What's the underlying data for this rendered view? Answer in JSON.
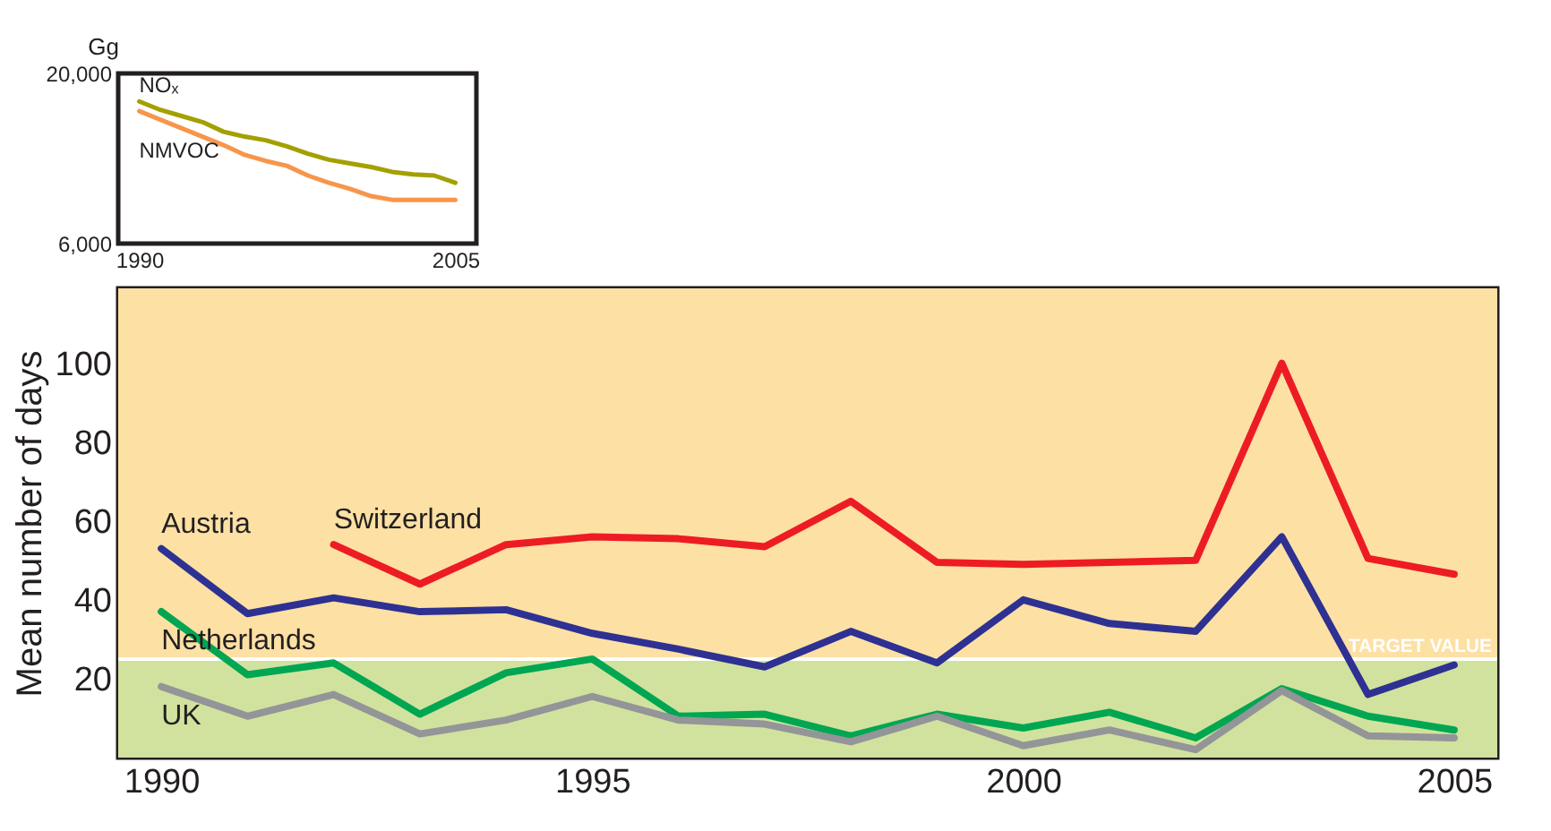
{
  "chart_data": [
    {
      "type": "line",
      "ylabel": "Gg",
      "x": [
        1990,
        1991,
        1992,
        1993,
        1994,
        1995,
        1996,
        1997,
        1998,
        1999,
        2000,
        2001,
        2002,
        2003,
        2004,
        2005
      ],
      "xlim": [
        1989,
        2006
      ],
      "xticks": [
        1990,
        2005
      ],
      "ylim": [
        6000,
        20000
      ],
      "yticks": [
        {
          "value": 6000,
          "label": "6,000"
        },
        {
          "value": 20000,
          "label": "20,000"
        }
      ],
      "grid": false,
      "legend": false,
      "series": [
        {
          "name": "NOₓ",
          "color": "#a3a000",
          "values": [
            17700,
            17000,
            16500,
            16000,
            15200,
            14800,
            14500,
            14000,
            13400,
            12900,
            12600,
            12300,
            11900,
            11700,
            11600,
            11000
          ]
        },
        {
          "name": "NMVOC",
          "color": "#f7964a",
          "values": [
            16900,
            16200,
            15500,
            14800,
            14100,
            13300,
            12800,
            12400,
            11600,
            11000,
            10500,
            9900,
            9600,
            9600,
            9600,
            9600
          ]
        }
      ]
    },
    {
      "type": "line",
      "ylabel": "Mean number of days",
      "x": [
        1990,
        1991,
        1992,
        1993,
        1994,
        1995,
        1996,
        1997,
        1998,
        1999,
        2000,
        2001,
        2002,
        2003,
        2004,
        2005
      ],
      "xlim": [
        1989.5,
        2005.5
      ],
      "xticks": [
        1990,
        1995,
        2000,
        2005
      ],
      "ylim": [
        0,
        119
      ],
      "yticks": [
        20,
        40,
        60,
        80,
        100
      ],
      "grid": false,
      "legend": false,
      "bands": [
        {
          "axis": "y",
          "from": 0,
          "to": 25,
          "label": null,
          "color": "#d1e29e"
        },
        {
          "axis": "y",
          "from": 25,
          "to": 119,
          "label": null,
          "color": "#fde0a4"
        }
      ],
      "ref_lines": [
        {
          "axis": "y",
          "value": 25,
          "label": "TARGET VALUE",
          "color": "#ffffff"
        }
      ],
      "series": [
        {
          "name": "Austria",
          "color": "#2e3192",
          "values": [
            53,
            36.5,
            40.5,
            37,
            37.5,
            31.5,
            27.5,
            23,
            32,
            24,
            40,
            34,
            32,
            56,
            16,
            23.5
          ]
        },
        {
          "name": "Switzerland",
          "color": "#ed1c24",
          "values": [
            null,
            null,
            54,
            44,
            54,
            56,
            55.5,
            53.5,
            65,
            49.5,
            49,
            49.5,
            50,
            100,
            50.5,
            46.5
          ]
        },
        {
          "name": "Netherlands",
          "color": "#00a651",
          "values": [
            37,
            21,
            24,
            11,
            21.5,
            25,
            10.5,
            11,
            5.5,
            11,
            7.5,
            11.5,
            5,
            17.5,
            10.5,
            7
          ]
        },
        {
          "name": "UK",
          "color": "#939598",
          "values": [
            18,
            10.5,
            16,
            6,
            9.5,
            15.5,
            9.5,
            8.5,
            4,
            10.5,
            3,
            7,
            2,
            17,
            5.5,
            5
          ]
        }
      ]
    }
  ]
}
